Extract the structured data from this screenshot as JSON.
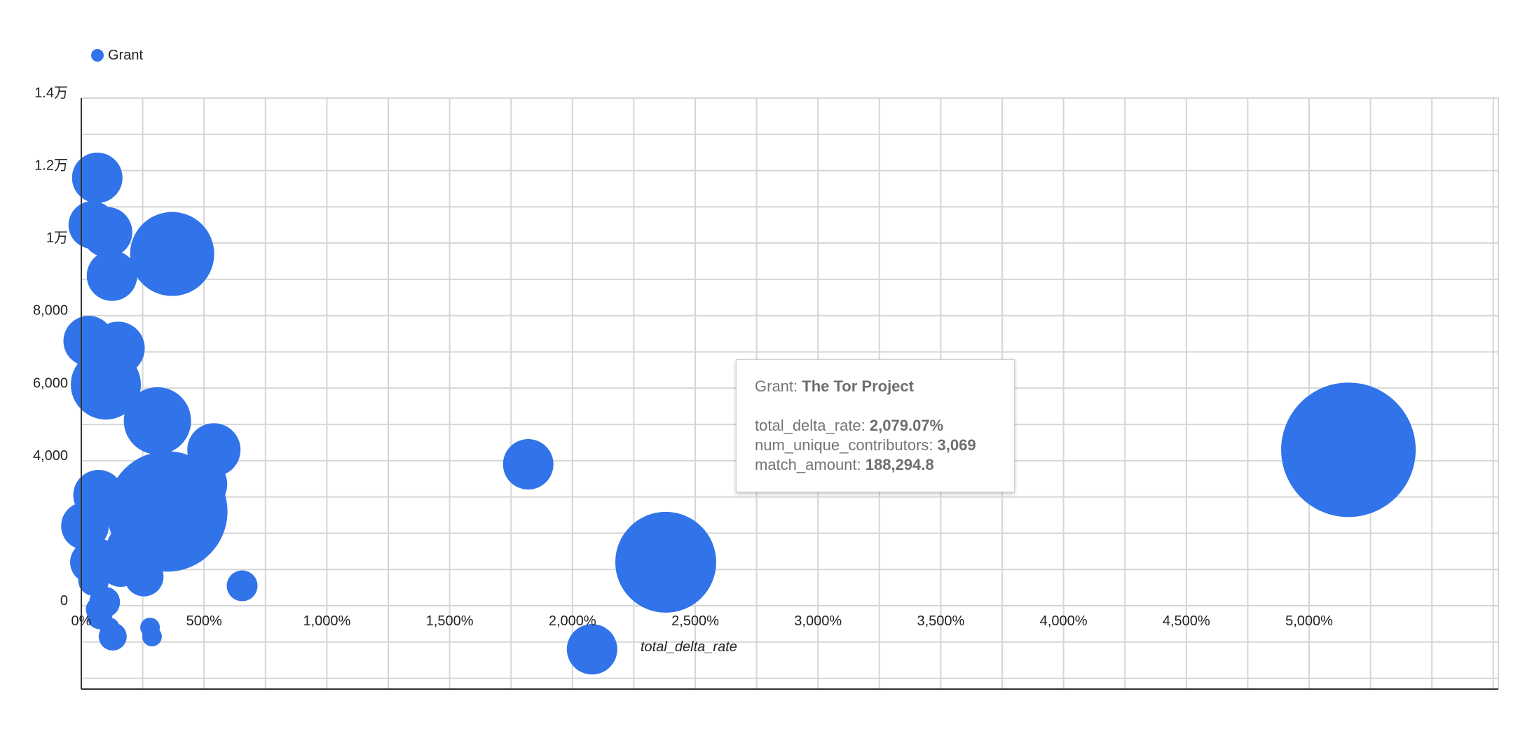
{
  "chart_data": {
    "type": "scatter",
    "subtype": "bubble",
    "xlabel": "total_delta_rate",
    "ylabel": "",
    "x_unit": "%",
    "xlim": [
      0,
      5750
    ],
    "ylim": [
      -2300,
      14000
    ],
    "x_ticks": [
      0,
      500,
      1000,
      1500,
      2000,
      2500,
      3000,
      3500,
      4000,
      4500,
      5000
    ],
    "x_tick_labels": [
      "0%",
      "500%",
      "1,000%",
      "1,500%",
      "2,000%",
      "2,500%",
      "3,000%",
      "3,500%",
      "4,000%",
      "4,500%",
      "5,000%"
    ],
    "y_ticks": [
      0,
      4000,
      6000,
      8000,
      10000,
      12000,
      14000
    ],
    "y_tick_labels": [
      "0",
      "4,000",
      "6,000",
      "8,000",
      "1万",
      "1.2万",
      "1.4万"
    ],
    "grid": true,
    "legend": {
      "position": "top-left",
      "entries": [
        "Grant"
      ]
    },
    "bubble_color": "#3173e8",
    "series": [
      {
        "name": "Grant",
        "points": [
          {
            "x": 65,
            "y": 11800,
            "size": 36
          },
          {
            "x": 45,
            "y": 10500,
            "size": 34
          },
          {
            "x": 105,
            "y": 10300,
            "size": 36
          },
          {
            "x": 370,
            "y": 9700,
            "size": 60
          },
          {
            "x": 125,
            "y": 9100,
            "size": 36
          },
          {
            "x": 30,
            "y": 7300,
            "size": 36
          },
          {
            "x": 150,
            "y": 7100,
            "size": 38
          },
          {
            "x": 100,
            "y": 6100,
            "size": 50
          },
          {
            "x": 310,
            "y": 5100,
            "size": 48
          },
          {
            "x": 540,
            "y": 4300,
            "size": 38
          },
          {
            "x": 1820,
            "y": 3900,
            "size": 36
          },
          {
            "x": 480,
            "y": 3350,
            "size": 40
          },
          {
            "x": 70,
            "y": 3050,
            "size": 36
          },
          {
            "x": 230,
            "y": 3050,
            "size": 36
          },
          {
            "x": 350,
            "y": 2600,
            "size": 86
          },
          {
            "x": 5160,
            "y": 4300,
            "size": 96
          },
          {
            "x": 15,
            "y": 2200,
            "size": 34
          },
          {
            "x": 200,
            "y": 1600,
            "size": 34
          },
          {
            "x": 220,
            "y": 1400,
            "size": 28
          },
          {
            "x": 40,
            "y": 1200,
            "size": 30
          },
          {
            "x": 75,
            "y": 1300,
            "size": 28
          },
          {
            "x": 160,
            "y": 1100,
            "size": 30
          },
          {
            "x": 255,
            "y": 800,
            "size": 28
          },
          {
            "x": 2380,
            "y": 1200,
            "size": 72
          },
          {
            "x": 655,
            "y": 550,
            "size": 22
          },
          {
            "x": 50,
            "y": 700,
            "size": 22
          },
          {
            "x": 95,
            "y": 100,
            "size": 22
          },
          {
            "x": 70,
            "y": -100,
            "size": 18
          },
          {
            "x": 75,
            "y": -300,
            "size": 18
          },
          {
            "x": 115,
            "y": -600,
            "size": 14
          },
          {
            "x": 128,
            "y": -850,
            "size": 20
          },
          {
            "x": 280,
            "y": -600,
            "size": 14
          },
          {
            "x": 288,
            "y": -850,
            "size": 14
          },
          {
            "x": 2080,
            "y": -1200,
            "size": 36
          }
        ]
      }
    ],
    "tooltip": {
      "grant_label": "Grant: ",
      "grant_value": "The Tor Project",
      "rows": [
        {
          "label": "total_delta_rate: ",
          "value": "2,079.07%"
        },
        {
          "label": "num_unique_contributors: ",
          "value": "3,069"
        },
        {
          "label": "match_amount: ",
          "value": "188,294.8"
        }
      ]
    }
  }
}
